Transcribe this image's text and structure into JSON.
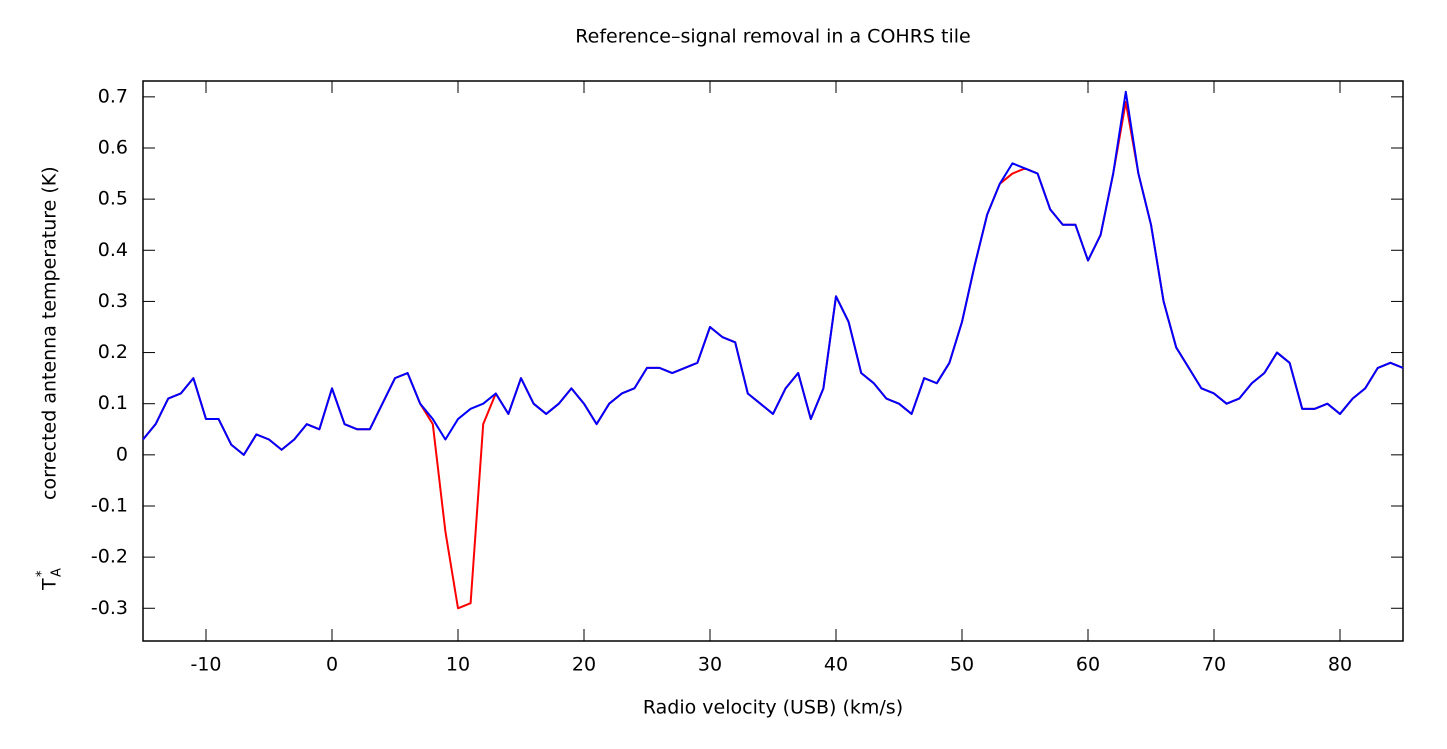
{
  "chart_data": {
    "type": "line",
    "title": "Reference–signal removal in a COHRS tile",
    "xlabel": "Radio velocity (USB) (km/s)",
    "ylabel": "corrected antenna temperature (K)",
    "ylabel_symbol": {
      "base": "T",
      "sup": "*",
      "sub": "A"
    },
    "x": [
      -15,
      -14,
      -13,
      -12,
      -11,
      -10,
      -9,
      -8,
      -7,
      -6,
      -5,
      -4,
      -3,
      -2,
      -1,
      0,
      1,
      2,
      3,
      4,
      5,
      6,
      7,
      8,
      9,
      10,
      11,
      12,
      13,
      14,
      15,
      16,
      17,
      18,
      19,
      20,
      21,
      22,
      23,
      24,
      25,
      26,
      27,
      28,
      29,
      30,
      31,
      32,
      33,
      34,
      35,
      36,
      37,
      38,
      39,
      40,
      41,
      42,
      43,
      44,
      45,
      46,
      47,
      48,
      49,
      50,
      51,
      52,
      53,
      54,
      55,
      56,
      57,
      58,
      59,
      60,
      61,
      62,
      63,
      64,
      65,
      66,
      67,
      68,
      69,
      70,
      71,
      72,
      73,
      74,
      75,
      76,
      77,
      78,
      79,
      80,
      81,
      82,
      83,
      84,
      85
    ],
    "series": [
      {
        "color": "#ff0000",
        "values": [
          0.03,
          0.06,
          0.11,
          0.12,
          0.15,
          0.07,
          0.07,
          0.02,
          0.0,
          0.04,
          0.03,
          0.01,
          0.03,
          0.06,
          0.05,
          0.13,
          0.06,
          0.05,
          0.05,
          0.1,
          0.15,
          0.16,
          0.1,
          0.06,
          -0.15,
          -0.3,
          -0.29,
          0.06,
          0.12,
          0.08,
          0.15,
          0.1,
          0.08,
          0.1,
          0.13,
          0.1,
          0.06,
          0.1,
          0.12,
          0.13,
          0.17,
          0.17,
          0.16,
          0.17,
          0.18,
          0.25,
          0.23,
          0.22,
          0.12,
          0.1,
          0.08,
          0.13,
          0.16,
          0.07,
          0.13,
          0.31,
          0.26,
          0.16,
          0.14,
          0.11,
          0.1,
          0.08,
          0.15,
          0.14,
          0.18,
          0.26,
          0.37,
          0.47,
          0.53,
          0.55,
          0.56,
          0.55,
          0.48,
          0.45,
          0.45,
          0.38,
          0.43,
          0.55,
          0.69,
          0.55,
          0.45,
          0.3,
          0.21,
          0.17,
          0.13,
          0.12,
          0.1,
          0.11,
          0.14,
          0.16,
          0.2,
          0.18,
          0.09,
          0.09,
          0.1,
          0.08,
          0.11,
          0.13,
          0.17,
          0.18,
          0.17
        ]
      },
      {
        "color": "#0000ff",
        "values": [
          0.03,
          0.06,
          0.11,
          0.12,
          0.15,
          0.07,
          0.07,
          0.02,
          0.0,
          0.04,
          0.03,
          0.01,
          0.03,
          0.06,
          0.05,
          0.13,
          0.06,
          0.05,
          0.05,
          0.1,
          0.15,
          0.16,
          0.1,
          0.07,
          0.03,
          0.07,
          0.09,
          0.1,
          0.12,
          0.08,
          0.15,
          0.1,
          0.08,
          0.1,
          0.13,
          0.1,
          0.06,
          0.1,
          0.12,
          0.13,
          0.17,
          0.17,
          0.16,
          0.17,
          0.18,
          0.25,
          0.23,
          0.22,
          0.12,
          0.1,
          0.08,
          0.13,
          0.16,
          0.07,
          0.13,
          0.31,
          0.26,
          0.16,
          0.14,
          0.11,
          0.1,
          0.08,
          0.15,
          0.14,
          0.18,
          0.26,
          0.37,
          0.47,
          0.53,
          0.57,
          0.56,
          0.55,
          0.48,
          0.45,
          0.45,
          0.38,
          0.43,
          0.55,
          0.71,
          0.55,
          0.45,
          0.3,
          0.21,
          0.17,
          0.13,
          0.12,
          0.1,
          0.11,
          0.14,
          0.16,
          0.2,
          0.18,
          0.09,
          0.09,
          0.1,
          0.08,
          0.11,
          0.13,
          0.17,
          0.18,
          0.17
        ]
      }
    ],
    "xlim": [
      -15,
      85
    ],
    "ylim": [
      -0.364,
      0.731
    ],
    "xticks": [
      -10,
      0,
      10,
      20,
      30,
      40,
      50,
      60,
      70,
      80
    ],
    "yticks": [
      -0.3,
      -0.2,
      -0.1,
      0,
      0.1,
      0.2,
      0.3,
      0.4,
      0.5,
      0.6,
      0.7
    ],
    "grid": false
  }
}
